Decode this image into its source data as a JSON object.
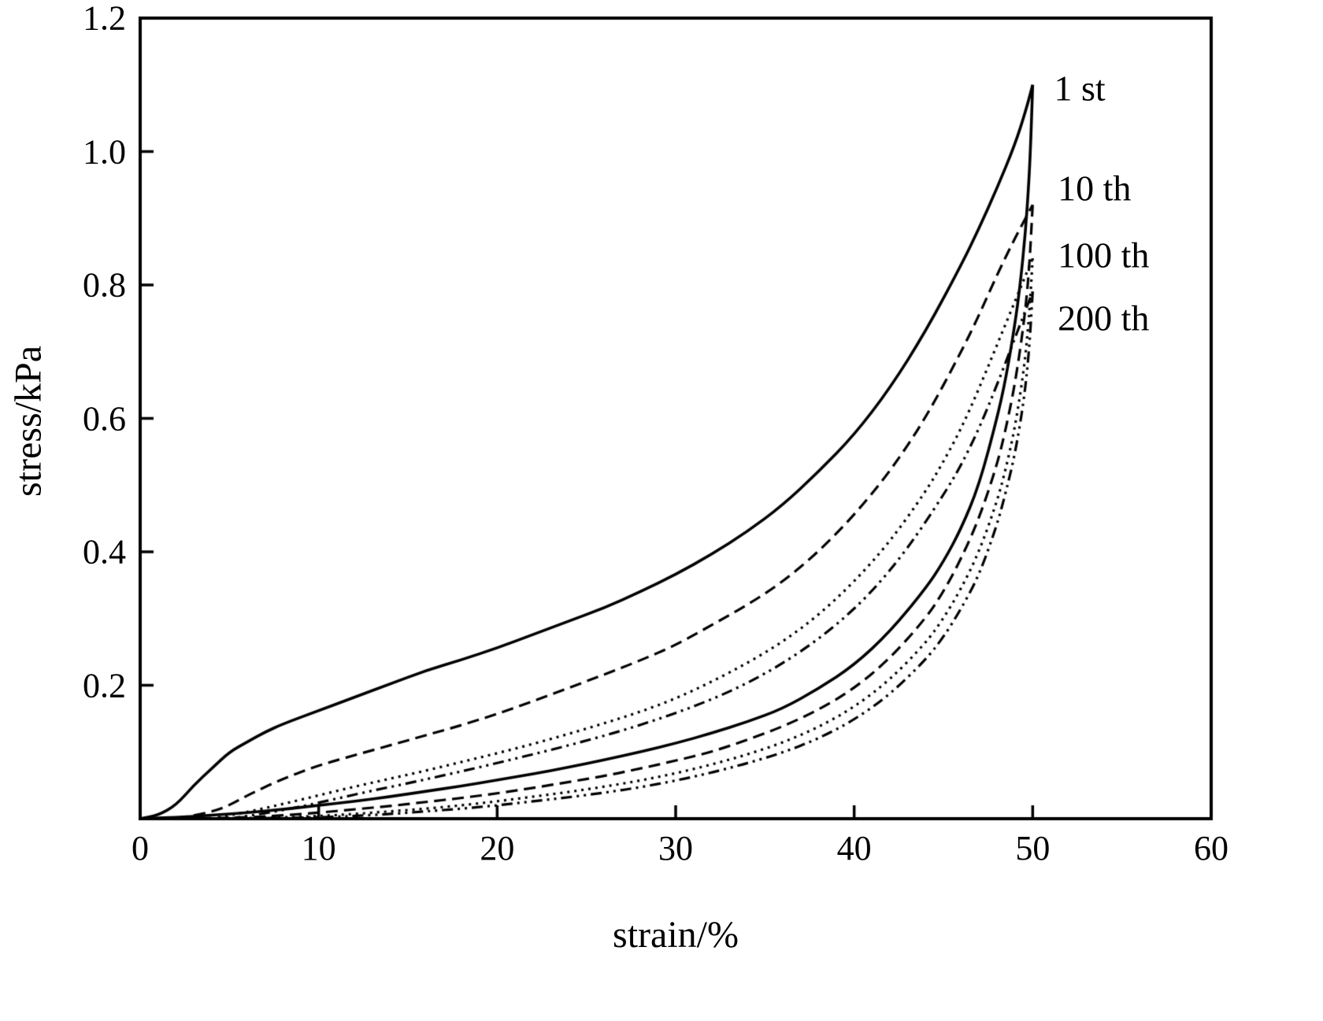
{
  "figure": {
    "background": "#ffffff",
    "line_color": "#000000"
  },
  "chart_data": {
    "type": "line",
    "title": "",
    "xlabel": "strain/%",
    "ylabel": "stress/kPa",
    "xlim": [
      0,
      60
    ],
    "ylim": [
      0,
      1.2
    ],
    "x_ticks": [
      0,
      10,
      20,
      30,
      40,
      50,
      60
    ],
    "x_tick_labels": [
      "0",
      "10",
      "20",
      "30",
      "40",
      "50",
      "60"
    ],
    "y_ticks": [
      0.2,
      0.4,
      0.6,
      0.8,
      1.0,
      1.2
    ],
    "y_tick_labels": [
      "0.2",
      "0.4",
      "0.6",
      "0.8",
      "1.0",
      "1.2"
    ],
    "grid": false,
    "frame": true,
    "legend_position": "none",
    "axis_color": "#000000",
    "series": [
      {
        "name": "cycle-1",
        "label": "1 st",
        "line_style": "solid",
        "dash": [],
        "width": 3.6,
        "loading": [
          [
            0,
            0
          ],
          [
            1,
            0.005
          ],
          [
            2,
            0.02
          ],
          [
            3,
            0.05
          ],
          [
            4,
            0.075
          ],
          [
            5,
            0.1
          ],
          [
            6,
            0.115
          ],
          [
            7,
            0.13
          ],
          [
            8,
            0.142
          ],
          [
            10,
            0.162
          ],
          [
            12,
            0.182
          ],
          [
            14,
            0.202
          ],
          [
            16,
            0.222
          ],
          [
            18,
            0.238
          ],
          [
            20,
            0.256
          ],
          [
            22,
            0.276
          ],
          [
            24,
            0.296
          ],
          [
            26,
            0.316
          ],
          [
            28,
            0.34
          ],
          [
            30,
            0.366
          ],
          [
            32,
            0.396
          ],
          [
            34,
            0.43
          ],
          [
            36,
            0.47
          ],
          [
            38,
            0.52
          ],
          [
            40,
            0.575
          ],
          [
            42,
            0.645
          ],
          [
            44,
            0.73
          ],
          [
            46,
            0.83
          ],
          [
            47,
            0.885
          ],
          [
            48,
            0.945
          ],
          [
            49,
            1.01
          ],
          [
            49.6,
            1.06
          ],
          [
            50,
            1.1
          ]
        ],
        "unloading": [
          [
            50,
            1.1
          ],
          [
            49.9,
            1.02
          ],
          [
            49.8,
            0.96
          ],
          [
            49.6,
            0.88
          ],
          [
            49.3,
            0.8
          ],
          [
            49,
            0.74
          ],
          [
            48.5,
            0.66
          ],
          [
            48,
            0.6
          ],
          [
            47,
            0.5
          ],
          [
            46,
            0.435
          ],
          [
            45,
            0.385
          ],
          [
            44,
            0.345
          ],
          [
            42,
            0.28
          ],
          [
            40,
            0.23
          ],
          [
            38,
            0.195
          ],
          [
            36,
            0.165
          ],
          [
            34,
            0.145
          ],
          [
            32,
            0.128
          ],
          [
            30,
            0.113
          ],
          [
            28,
            0.1
          ],
          [
            26,
            0.088
          ],
          [
            24,
            0.077
          ],
          [
            22,
            0.067
          ],
          [
            20,
            0.058
          ],
          [
            18,
            0.049
          ],
          [
            16,
            0.041
          ],
          [
            14,
            0.033
          ],
          [
            12,
            0.026
          ],
          [
            10,
            0.02
          ],
          [
            8,
            0.014
          ],
          [
            6,
            0.009
          ],
          [
            4,
            0.005
          ],
          [
            2,
            0.002
          ],
          [
            0,
            0
          ]
        ]
      },
      {
        "name": "cycle-10",
        "label": "10 th",
        "line_style": "dashed",
        "dash": [
          15,
          8
        ],
        "width": 3.2,
        "loading": [
          [
            2,
            0
          ],
          [
            4,
            0.01
          ],
          [
            5,
            0.02
          ],
          [
            6,
            0.035
          ],
          [
            8,
            0.06
          ],
          [
            10,
            0.08
          ],
          [
            12,
            0.095
          ],
          [
            14,
            0.11
          ],
          [
            16,
            0.125
          ],
          [
            18,
            0.14
          ],
          [
            20,
            0.157
          ],
          [
            22,
            0.176
          ],
          [
            24,
            0.196
          ],
          [
            26,
            0.216
          ],
          [
            28,
            0.237
          ],
          [
            30,
            0.26
          ],
          [
            32,
            0.29
          ],
          [
            34,
            0.32
          ],
          [
            36,
            0.355
          ],
          [
            38,
            0.4
          ],
          [
            40,
            0.455
          ],
          [
            42,
            0.52
          ],
          [
            44,
            0.6
          ],
          [
            46,
            0.7
          ],
          [
            47,
            0.755
          ],
          [
            48,
            0.815
          ],
          [
            49,
            0.87
          ],
          [
            50,
            0.92
          ]
        ],
        "unloading": [
          [
            50,
            0.92
          ],
          [
            49.8,
            0.82
          ],
          [
            49.5,
            0.74
          ],
          [
            49,
            0.65
          ],
          [
            48.5,
            0.585
          ],
          [
            48,
            0.53
          ],
          [
            47,
            0.45
          ],
          [
            46,
            0.39
          ],
          [
            45,
            0.34
          ],
          [
            44,
            0.3
          ],
          [
            42,
            0.24
          ],
          [
            40,
            0.195
          ],
          [
            38,
            0.163
          ],
          [
            36,
            0.138
          ],
          [
            34,
            0.118
          ],
          [
            32,
            0.1
          ],
          [
            30,
            0.087
          ],
          [
            28,
            0.075
          ],
          [
            26,
            0.064
          ],
          [
            24,
            0.055
          ],
          [
            22,
            0.046
          ],
          [
            20,
            0.038
          ],
          [
            18,
            0.031
          ],
          [
            16,
            0.025
          ],
          [
            14,
            0.019
          ],
          [
            12,
            0.014
          ],
          [
            10,
            0.009
          ],
          [
            8,
            0.005
          ],
          [
            6,
            0.002
          ],
          [
            4,
            0.001
          ],
          [
            2,
            0
          ]
        ]
      },
      {
        "name": "cycle-100",
        "label": "100 th",
        "line_style": "dotted",
        "dash": [
          3,
          6
        ],
        "width": 3.2,
        "loading": [
          [
            4,
            0
          ],
          [
            6,
            0.01
          ],
          [
            8,
            0.022
          ],
          [
            10,
            0.035
          ],
          [
            12,
            0.048
          ],
          [
            14,
            0.06
          ],
          [
            16,
            0.072
          ],
          [
            18,
            0.085
          ],
          [
            20,
            0.098
          ],
          [
            22,
            0.112
          ],
          [
            24,
            0.127
          ],
          [
            26,
            0.143
          ],
          [
            28,
            0.16
          ],
          [
            30,
            0.18
          ],
          [
            32,
            0.205
          ],
          [
            34,
            0.233
          ],
          [
            36,
            0.265
          ],
          [
            38,
            0.305
          ],
          [
            40,
            0.355
          ],
          [
            42,
            0.415
          ],
          [
            44,
            0.49
          ],
          [
            45,
            0.535
          ],
          [
            46,
            0.585
          ],
          [
            47,
            0.645
          ],
          [
            48,
            0.71
          ],
          [
            49,
            0.775
          ],
          [
            50,
            0.84
          ]
        ],
        "unloading": [
          [
            50,
            0.84
          ],
          [
            49.8,
            0.75
          ],
          [
            49.5,
            0.67
          ],
          [
            49,
            0.585
          ],
          [
            48.5,
            0.525
          ],
          [
            48,
            0.475
          ],
          [
            47,
            0.4
          ],
          [
            46,
            0.345
          ],
          [
            45,
            0.3
          ],
          [
            44,
            0.263
          ],
          [
            42,
            0.208
          ],
          [
            40,
            0.167
          ],
          [
            38,
            0.137
          ],
          [
            36,
            0.114
          ],
          [
            34,
            0.096
          ],
          [
            32,
            0.081
          ],
          [
            30,
            0.068
          ],
          [
            28,
            0.057
          ],
          [
            26,
            0.048
          ],
          [
            24,
            0.04
          ],
          [
            22,
            0.033
          ],
          [
            20,
            0.026
          ],
          [
            18,
            0.02
          ],
          [
            16,
            0.015
          ],
          [
            14,
            0.011
          ],
          [
            12,
            0.007
          ],
          [
            10,
            0.004
          ],
          [
            8,
            0.002
          ],
          [
            6,
            0.001
          ],
          [
            4,
            0
          ]
        ]
      },
      {
        "name": "cycle-200",
        "label": "200 th",
        "line_style": "dash-dot-dot",
        "dash": [
          14,
          6,
          3,
          6,
          3,
          6
        ],
        "width": 3.2,
        "loading": [
          [
            5,
            0
          ],
          [
            7,
            0.008
          ],
          [
            9,
            0.018
          ],
          [
            11,
            0.03
          ],
          [
            13,
            0.042
          ],
          [
            15,
            0.053
          ],
          [
            17,
            0.065
          ],
          [
            19,
            0.077
          ],
          [
            21,
            0.09
          ],
          [
            23,
            0.103
          ],
          [
            25,
            0.117
          ],
          [
            27,
            0.132
          ],
          [
            29,
            0.149
          ],
          [
            31,
            0.168
          ],
          [
            33,
            0.19
          ],
          [
            35,
            0.217
          ],
          [
            37,
            0.25
          ],
          [
            39,
            0.29
          ],
          [
            41,
            0.34
          ],
          [
            43,
            0.405
          ],
          [
            45,
            0.485
          ],
          [
            46,
            0.53
          ],
          [
            47,
            0.585
          ],
          [
            48,
            0.65
          ],
          [
            49,
            0.72
          ],
          [
            50,
            0.79
          ]
        ],
        "unloading": [
          [
            50,
            0.79
          ],
          [
            49.8,
            0.7
          ],
          [
            49.5,
            0.625
          ],
          [
            49,
            0.545
          ],
          [
            48.5,
            0.49
          ],
          [
            48,
            0.44
          ],
          [
            47,
            0.365
          ],
          [
            46,
            0.315
          ],
          [
            45,
            0.272
          ],
          [
            44,
            0.238
          ],
          [
            42,
            0.186
          ],
          [
            40,
            0.148
          ],
          [
            38,
            0.12
          ],
          [
            36,
            0.099
          ],
          [
            34,
            0.083
          ],
          [
            32,
            0.069
          ],
          [
            30,
            0.057
          ],
          [
            28,
            0.047
          ],
          [
            26,
            0.039
          ],
          [
            24,
            0.032
          ],
          [
            22,
            0.026
          ],
          [
            20,
            0.02
          ],
          [
            18,
            0.015
          ],
          [
            16,
            0.011
          ],
          [
            14,
            0.007
          ],
          [
            12,
            0.004
          ],
          [
            10,
            0.002
          ],
          [
            5,
            0
          ]
        ]
      }
    ],
    "annotations": [
      {
        "label": "1 st",
        "x": 51.2,
        "y": 1.095
      },
      {
        "label": "10 th",
        "x": 51.4,
        "y": 0.945
      },
      {
        "label": "100 th",
        "x": 51.4,
        "y": 0.845
      },
      {
        "label": "200 th",
        "x": 51.4,
        "y": 0.75
      }
    ]
  }
}
